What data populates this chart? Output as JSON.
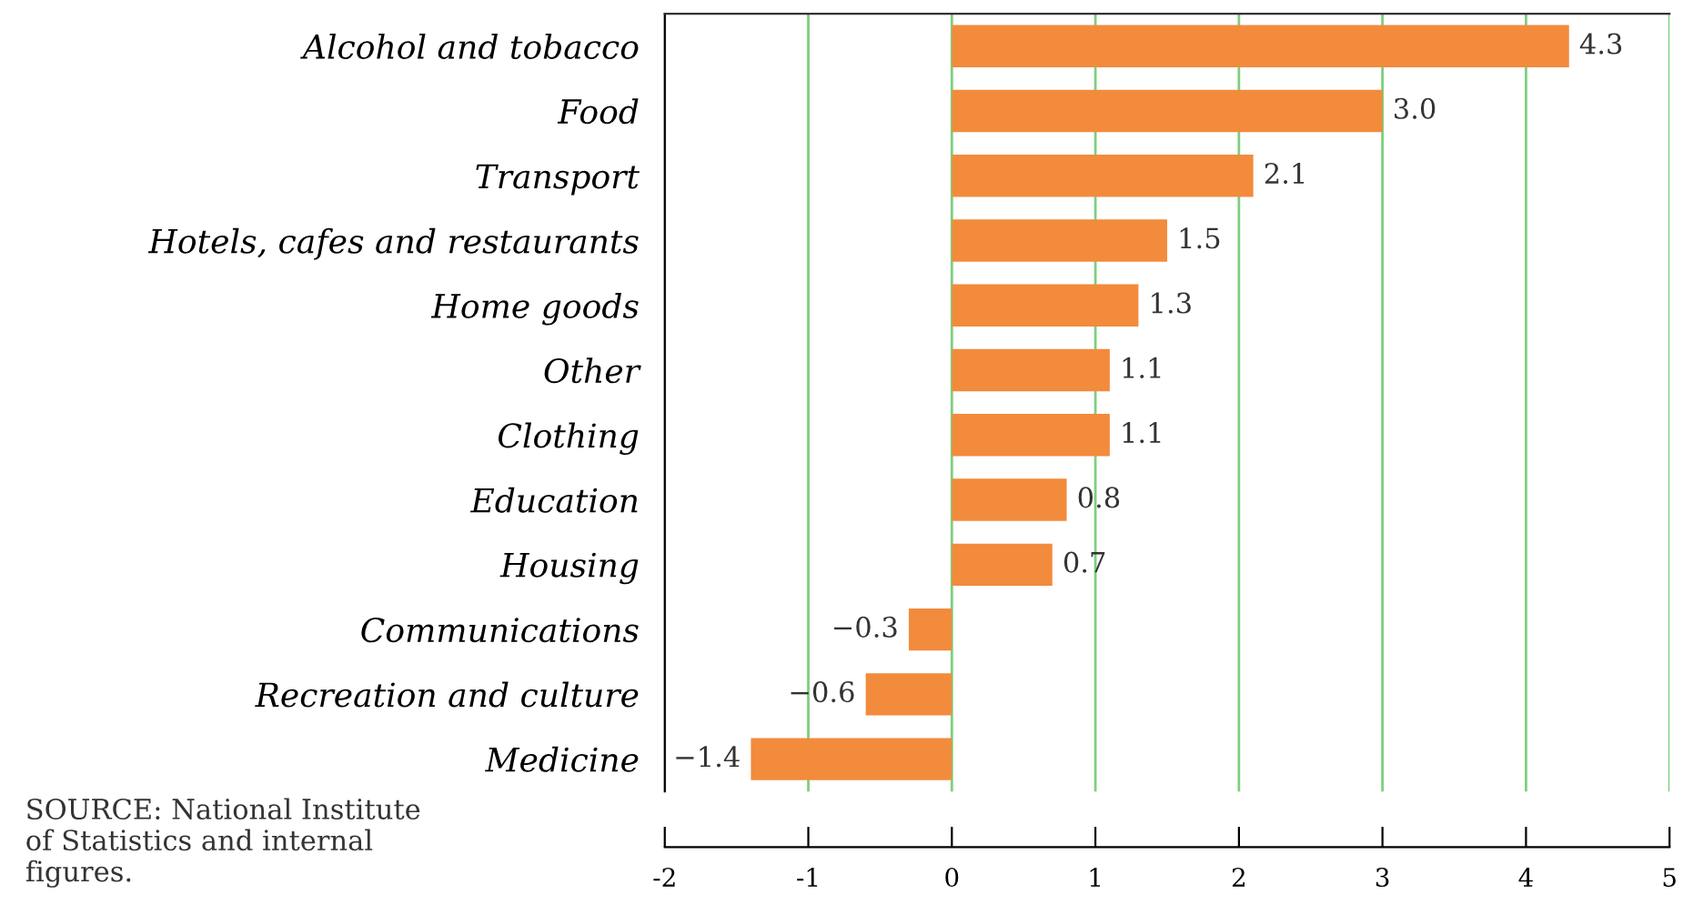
{
  "chart_data": {
    "type": "bar",
    "orientation": "horizontal",
    "categories": [
      "Alcohol and tobacco",
      "Food",
      "Transport",
      "Hotels, cafes and restaurants",
      "Home goods",
      "Other",
      "Clothing",
      "Education",
      "Housing",
      "Communications",
      "Recreation and culture",
      "Medicine"
    ],
    "values": [
      4.3,
      3.0,
      2.1,
      1.5,
      1.3,
      1.1,
      1.1,
      0.8,
      0.7,
      -0.3,
      -0.6,
      -1.4
    ],
    "value_labels": [
      "4.3",
      "3.0",
      "2.1",
      "1.5",
      "1.3",
      "1.1",
      "1.1",
      "0.8",
      "0.7",
      "−0.3",
      "−0.6",
      "−1.4"
    ],
    "color": "#f28b3c",
    "xlim": [
      -2,
      5
    ],
    "xticks": [
      -2,
      -1,
      0,
      1,
      2,
      3,
      4,
      5
    ],
    "grid": "x",
    "annotations": [
      "SOURCE: National Institute\nof Statistics and internal\nfigures."
    ]
  }
}
